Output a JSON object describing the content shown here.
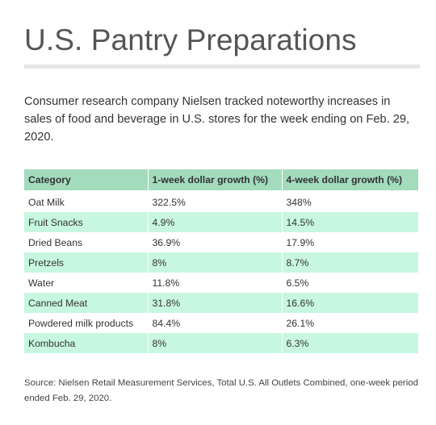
{
  "title": "U.S. Pantry Preparations",
  "subtitle": "Consumer research company Nielsen tracked noteworthy increases in sales of food and beverage in U.S. stores for the week ending on Feb. 29, 2020.",
  "source": "Source: Nielsen Retail Measurement Services, Total U.S. All Outlets Combined, one-week period ended Feb. 29, 2020.",
  "colors": {
    "header_bg": "#a3dbbd",
    "stripe_bg": "#c7f7df",
    "title_rule": "#e6e6e6"
  },
  "chart_data": {
    "type": "table",
    "title": "U.S. Pantry Preparations",
    "columns": [
      "Category",
      "1-week dollar growth (%)",
      "4-week dollar growth (%)"
    ],
    "rows": [
      [
        "Oat Milk",
        "322.5%",
        "348%"
      ],
      [
        "Fruit Snacks",
        "4.9%",
        "14.5%"
      ],
      [
        "Dried Beans",
        "36.9%",
        "17.9%"
      ],
      [
        "Pretzels",
        "8%",
        "8.7%"
      ],
      [
        "Water",
        "11.8%",
        "6.5%"
      ],
      [
        "Canned Meat",
        "31.8%",
        "16.6%"
      ],
      [
        "Powdered milk products",
        "84.4%",
        "26.1%"
      ],
      [
        "Kombucha",
        "8%",
        "6.3%"
      ]
    ]
  }
}
